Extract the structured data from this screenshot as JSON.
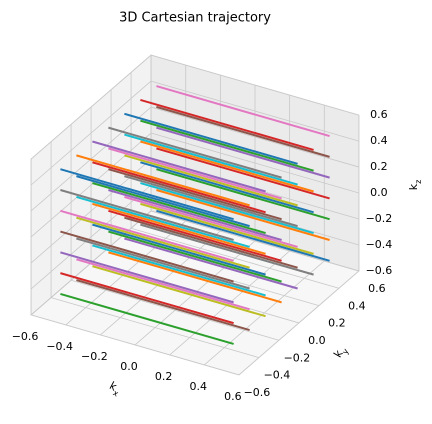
{
  "chart_data": {
    "type": "line3d",
    "title": "3D Cartesian trajectory",
    "xlabel": "kx",
    "ylabel": "ky",
    "zlabel": "kz",
    "xlim": [
      -0.6,
      0.6
    ],
    "ylim": [
      -0.6,
      0.6
    ],
    "zlim": [
      -0.6,
      0.6
    ],
    "xticks": [
      {
        "value": -0.6,
        "label": "−0.6"
      },
      {
        "value": -0.4,
        "label": "−0.4"
      },
      {
        "value": -0.2,
        "label": "−0.2"
      },
      {
        "value": 0,
        "label": "0.0"
      },
      0.2,
      0.4,
      0.6
    ],
    "yticks": [
      {
        "value": -0.6,
        "label": "−0.6"
      },
      {
        "value": -0.4,
        "label": "−0.4"
      },
      {
        "value": -0.2,
        "label": "−0.2"
      },
      {
        "value": 0,
        "label": "0.0"
      },
      0.2,
      0.4,
      0.6
    ],
    "zticks": [
      {
        "value": -0.6,
        "label": "−0.6"
      },
      {
        "value": -0.4,
        "label": "−0.4"
      },
      {
        "value": -0.2,
        "label": "−0.2"
      },
      {
        "value": 0,
        "label": "0.0"
      },
      0.2,
      0.4,
      0.6
    ],
    "grid": true,
    "series": [
      {
        "x": [
          -0.5,
          0.5
        ],
        "y": [
          0.48,
          0.48
        ],
        "z": [
          -0.48,
          -0.48
        ],
        "color": "#1f77b4"
      },
      {
        "x": [
          -0.5,
          0.5
        ],
        "y": [
          0.48,
          0.48
        ],
        "z": [
          -0.32,
          -0.32
        ],
        "color": "#ff7f0e"
      },
      {
        "x": [
          -0.5,
          0.5
        ],
        "y": [
          0.48,
          0.48
        ],
        "z": [
          -0.16,
          -0.16
        ],
        "color": "#2ca02c"
      },
      {
        "x": [
          -0.5,
          0.5
        ],
        "y": [
          0.48,
          0.48
        ],
        "z": [
          0,
          0
        ],
        "color": "#d62728"
      },
      {
        "x": [
          -0.5,
          0.5
        ],
        "y": [
          0.48,
          0.48
        ],
        "z": [
          0.16,
          0.16
        ],
        "color": "#9467bd"
      },
      {
        "x": [
          -0.5,
          0.5
        ],
        "y": [
          0.48,
          0.48
        ],
        "z": [
          0.32,
          0.32
        ],
        "color": "#8c564b"
      },
      {
        "x": [
          -0.5,
          0.5
        ],
        "y": [
          0.48,
          0.48
        ],
        "z": [
          0.48,
          0.48
        ],
        "color": "#e377c2"
      },
      {
        "x": [
          -0.5,
          0.5
        ],
        "y": [
          0.32,
          0.32
        ],
        "z": [
          -0.48,
          -0.48
        ],
        "color": "#7f7f7f"
      },
      {
        "x": [
          -0.5,
          0.5
        ],
        "y": [
          0.32,
          0.32
        ],
        "z": [
          -0.32,
          -0.32
        ],
        "color": "#bcbd22"
      },
      {
        "x": [
          -0.5,
          0.5
        ],
        "y": [
          0.32,
          0.32
        ],
        "z": [
          -0.16,
          -0.16
        ],
        "color": "#17becf"
      },
      {
        "x": [
          -0.5,
          0.5
        ],
        "y": [
          0.32,
          0.32
        ],
        "z": [
          0,
          0
        ],
        "color": "#1f77b4"
      },
      {
        "x": [
          -0.5,
          0.5
        ],
        "y": [
          0.32,
          0.32
        ],
        "z": [
          0.16,
          0.16
        ],
        "color": "#ff7f0e"
      },
      {
        "x": [
          -0.5,
          0.5
        ],
        "y": [
          0.32,
          0.32
        ],
        "z": [
          0.32,
          0.32
        ],
        "color": "#2ca02c"
      },
      {
        "x": [
          -0.5,
          0.5
        ],
        "y": [
          0.32,
          0.32
        ],
        "z": [
          0.48,
          0.48
        ],
        "color": "#d62728"
      },
      {
        "x": [
          -0.5,
          0.5
        ],
        "y": [
          0.16,
          0.16
        ],
        "z": [
          -0.48,
          -0.48
        ],
        "color": "#9467bd"
      },
      {
        "x": [
          -0.5,
          0.5
        ],
        "y": [
          0.16,
          0.16
        ],
        "z": [
          -0.32,
          -0.32
        ],
        "color": "#8c564b"
      },
      {
        "x": [
          -0.5,
          0.5
        ],
        "y": [
          0.16,
          0.16
        ],
        "z": [
          -0.16,
          -0.16
        ],
        "color": "#e377c2"
      },
      {
        "x": [
          -0.5,
          0.5
        ],
        "y": [
          0.16,
          0.16
        ],
        "z": [
          0,
          0
        ],
        "color": "#7f7f7f"
      },
      {
        "x": [
          -0.5,
          0.5
        ],
        "y": [
          0.16,
          0.16
        ],
        "z": [
          0.16,
          0.16
        ],
        "color": "#bcbd22"
      },
      {
        "x": [
          -0.5,
          0.5
        ],
        "y": [
          0.16,
          0.16
        ],
        "z": [
          0.32,
          0.32
        ],
        "color": "#17becf"
      },
      {
        "x": [
          -0.5,
          0.5
        ],
        "y": [
          0.16,
          0.16
        ],
        "z": [
          0.48,
          0.48
        ],
        "color": "#1f77b4"
      },
      {
        "x": [
          -0.5,
          0.5
        ],
        "y": [
          0,
          0
        ],
        "z": [
          -0.48,
          -0.48
        ],
        "color": "#ff7f0e"
      },
      {
        "x": [
          -0.5,
          0.5
        ],
        "y": [
          0,
          0
        ],
        "z": [
          -0.32,
          -0.32
        ],
        "color": "#2ca02c"
      },
      {
        "x": [
          -0.5,
          0.5
        ],
        "y": [
          0,
          0
        ],
        "z": [
          -0.16,
          -0.16
        ],
        "color": "#d62728"
      },
      {
        "x": [
          -0.5,
          0.5
        ],
        "y": [
          0,
          0
        ],
        "z": [
          0,
          0
        ],
        "color": "#9467bd"
      },
      {
        "x": [
          -0.5,
          0.5
        ],
        "y": [
          0,
          0
        ],
        "z": [
          0.16,
          0.16
        ],
        "color": "#8c564b"
      },
      {
        "x": [
          -0.5,
          0.5
        ],
        "y": [
          0,
          0
        ],
        "z": [
          0.32,
          0.32
        ],
        "color": "#e377c2"
      },
      {
        "x": [
          -0.5,
          0.5
        ],
        "y": [
          0,
          0
        ],
        "z": [
          0.48,
          0.48
        ],
        "color": "#7f7f7f"
      },
      {
        "x": [
          -0.5,
          0.5
        ],
        "y": [
          -0.16,
          -0.16
        ],
        "z": [
          -0.48,
          -0.48
        ],
        "color": "#bcbd22"
      },
      {
        "x": [
          -0.5,
          0.5
        ],
        "y": [
          -0.16,
          -0.16
        ],
        "z": [
          -0.32,
          -0.32
        ],
        "color": "#17becf"
      },
      {
        "x": [
          -0.5,
          0.5
        ],
        "y": [
          -0.16,
          -0.16
        ],
        "z": [
          -0.16,
          -0.16
        ],
        "color": "#1f77b4"
      },
      {
        "x": [
          -0.5,
          0.5
        ],
        "y": [
          -0.16,
          -0.16
        ],
        "z": [
          0,
          0
        ],
        "color": "#ff7f0e"
      },
      {
        "x": [
          -0.5,
          0.5
        ],
        "y": [
          -0.16,
          -0.16
        ],
        "z": [
          0.16,
          0.16
        ],
        "color": "#2ca02c"
      },
      {
        "x": [
          -0.5,
          0.5
        ],
        "y": [
          -0.16,
          -0.16
        ],
        "z": [
          0.32,
          0.32
        ],
        "color": "#d62728"
      },
      {
        "x": [
          -0.5,
          0.5
        ],
        "y": [
          -0.16,
          -0.16
        ],
        "z": [
          0.48,
          0.48
        ],
        "color": "#9467bd"
      },
      {
        "x": [
          -0.5,
          0.5
        ],
        "y": [
          -0.32,
          -0.32
        ],
        "z": [
          -0.48,
          -0.48
        ],
        "color": "#8c564b"
      },
      {
        "x": [
          -0.5,
          0.5
        ],
        "y": [
          -0.32,
          -0.32
        ],
        "z": [
          -0.32,
          -0.32
        ],
        "color": "#e377c2"
      },
      {
        "x": [
          -0.5,
          0.5
        ],
        "y": [
          -0.32,
          -0.32
        ],
        "z": [
          -0.16,
          -0.16
        ],
        "color": "#7f7f7f"
      },
      {
        "x": [
          -0.5,
          0.5
        ],
        "y": [
          -0.32,
          -0.32
        ],
        "z": [
          0,
          0
        ],
        "color": "#bcbd22"
      },
      {
        "x": [
          -0.5,
          0.5
        ],
        "y": [
          -0.32,
          -0.32
        ],
        "z": [
          0.16,
          0.16
        ],
        "color": "#17becf"
      },
      {
        "x": [
          -0.5,
          0.5
        ],
        "y": [
          -0.32,
          -0.32
        ],
        "z": [
          0.32,
          0.32
        ],
        "color": "#1f77b4"
      },
      {
        "x": [
          -0.5,
          0.5
        ],
        "y": [
          -0.32,
          -0.32
        ],
        "z": [
          0.48,
          0.48
        ],
        "color": "#ff7f0e"
      },
      {
        "x": [
          -0.5,
          0.5
        ],
        "y": [
          -0.48,
          -0.48
        ],
        "z": [
          -0.48,
          -0.48
        ],
        "color": "#2ca02c"
      },
      {
        "x": [
          -0.5,
          0.5
        ],
        "y": [
          -0.48,
          -0.48
        ],
        "z": [
          -0.32,
          -0.32
        ],
        "color": "#d62728"
      },
      {
        "x": [
          -0.5,
          0.5
        ],
        "y": [
          -0.48,
          -0.48
        ],
        "z": [
          -0.16,
          -0.16
        ],
        "color": "#9467bd"
      },
      {
        "x": [
          -0.5,
          0.5
        ],
        "y": [
          -0.48,
          -0.48
        ],
        "z": [
          0,
          0
        ],
        "color": "#8c564b"
      },
      {
        "x": [
          -0.5,
          0.5
        ],
        "y": [
          -0.48,
          -0.48
        ],
        "z": [
          0.16,
          0.16
        ],
        "color": "#e377c2"
      },
      {
        "x": [
          -0.5,
          0.5
        ],
        "y": [
          -0.48,
          -0.48
        ],
        "z": [
          0.32,
          0.32
        ],
        "color": "#7f7f7f"
      },
      {
        "x": [
          -0.5,
          0.5
        ],
        "y": [
          -0.48,
          -0.48
        ],
        "z": [
          0.48,
          0.48
        ],
        "color": "#1f77b4"
      }
    ]
  }
}
